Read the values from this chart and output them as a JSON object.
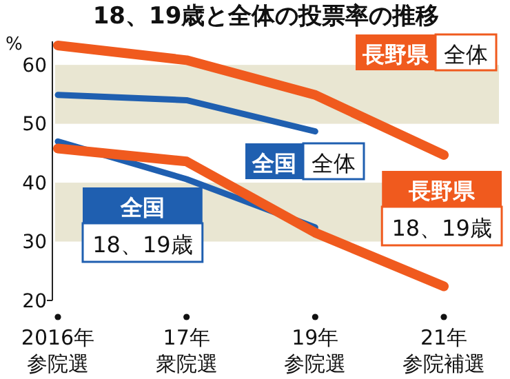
{
  "chart_data": {
    "type": "line",
    "title": "18、19歳と全体の投票率の推移",
    "ylabel": "%",
    "categories": [
      "2016年参院選",
      "17年衆院選",
      "19年参院選",
      "21年参院補選"
    ],
    "series": [
      {
        "name": "長野県 全体",
        "color": "#f05a1e",
        "values": [
          63.3,
          60.8,
          54.9,
          44.7
        ]
      },
      {
        "name": "全国 全体",
        "color": "#1f5fb0",
        "values": [
          54.9,
          54.0,
          48.7,
          null
        ]
      },
      {
        "name": "全国 18、19歳",
        "color": "#1f5fb0",
        "values": [
          47.0,
          40.6,
          32.4,
          null
        ]
      },
      {
        "name": "長野県 18、19歳",
        "color": "#f05a1e",
        "values": [
          45.8,
          43.6,
          31.5,
          22.4
        ]
      }
    ],
    "ylim": [
      20,
      64
    ],
    "yticks": [
      20,
      30,
      40,
      50,
      60
    ],
    "bands": [
      {
        "axis": "y",
        "from": 50,
        "to": 60,
        "color": "#e9e6d2"
      },
      {
        "axis": "y",
        "from": 30,
        "to": 40,
        "color": "#e9e6d2"
      }
    ],
    "grid": false,
    "marker": "none",
    "line_style": "solid"
  }
}
